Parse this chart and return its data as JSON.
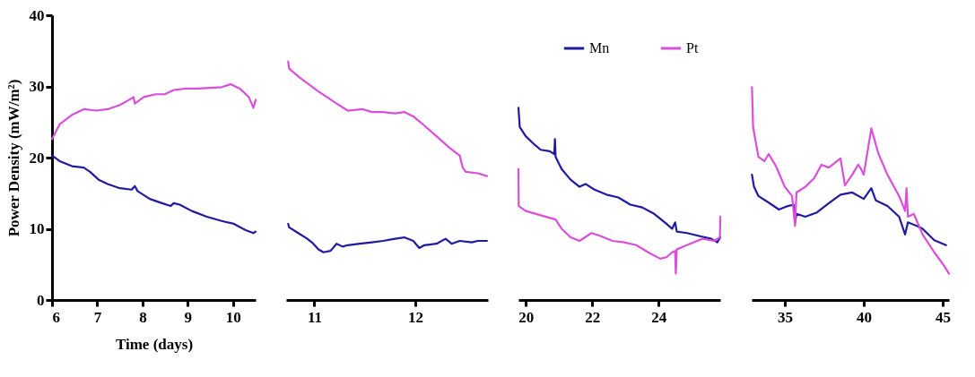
{
  "chart_data": [
    {
      "type": "line",
      "xlabel": "Time (days)",
      "ylabel": "Power Density (mW/m²)",
      "xlim": [
        6,
        10.5
      ],
      "xticks": [
        6,
        7,
        8,
        9,
        10
      ],
      "ylim": [
        0,
        40
      ],
      "yticks": [
        0,
        10,
        20,
        30,
        40
      ],
      "grid": false,
      "legend": false,
      "line_style": "solid",
      "marker": "none",
      "series": [
        {
          "color": "#1f1aa0",
          "x": [
            6.0,
            6.17,
            6.44,
            6.7,
            6.84,
            7.03,
            7.23,
            7.5,
            7.76,
            7.83,
            7.89,
            8.16,
            8.43,
            8.62,
            8.69,
            8.82,
            9.09,
            9.42,
            9.75,
            10.02,
            10.28,
            10.45,
            10.5
          ],
          "values": [
            20.3,
            19.5,
            18.8,
            18.6,
            18.0,
            16.9,
            16.3,
            15.7,
            15.5,
            16.0,
            15.3,
            14.2,
            13.6,
            13.2,
            13.6,
            13.4,
            12.5,
            11.7,
            11.1,
            10.7,
            9.8,
            9.4,
            9.6
          ]
        },
        {
          "color": "#d94fd9",
          "x": [
            6.0,
            6.17,
            6.44,
            6.7,
            6.97,
            7.23,
            7.5,
            7.7,
            7.8,
            7.83,
            8.03,
            8.29,
            8.49,
            8.69,
            8.96,
            9.22,
            9.49,
            9.75,
            9.95,
            10.15,
            10.35,
            10.45,
            10.5
          ],
          "values": [
            22.6,
            24.7,
            26.0,
            26.8,
            26.6,
            26.8,
            27.4,
            28.1,
            28.5,
            27.6,
            28.5,
            28.9,
            28.9,
            29.5,
            29.7,
            29.7,
            29.8,
            29.9,
            30.3,
            29.7,
            28.5,
            27.0,
            28.1
          ]
        }
      ]
    },
    {
      "type": "line",
      "xlim": [
        10.72,
        12.72
      ],
      "xticks": [
        11,
        12
      ],
      "ylim": [
        0,
        40
      ],
      "tick_labels": "x",
      "grid": false,
      "legend": false,
      "line_style": "solid",
      "marker": "none",
      "series": [
        {
          "color": "#1f1aa0",
          "x": [
            10.74,
            10.75,
            10.84,
            10.93,
            10.99,
            11.04,
            11.09,
            11.16,
            11.22,
            11.28,
            11.33,
            11.45,
            11.57,
            11.68,
            11.8,
            11.89,
            11.98,
            12.04,
            12.09,
            12.21,
            12.3,
            12.36,
            12.44,
            12.56,
            12.62,
            12.71
          ],
          "values": [
            10.7,
            10.2,
            9.4,
            8.6,
            7.9,
            7.1,
            6.7,
            6.9,
            7.9,
            7.5,
            7.7,
            7.9,
            8.1,
            8.3,
            8.6,
            8.8,
            8.3,
            7.3,
            7.7,
            7.9,
            8.6,
            7.9,
            8.3,
            8.1,
            8.3,
            8.3
          ]
        },
        {
          "color": "#d94fd9",
          "x": [
            10.74,
            10.75,
            10.84,
            11.04,
            11.22,
            11.33,
            11.48,
            11.57,
            11.68,
            11.8,
            11.89,
            11.98,
            12.09,
            12.21,
            12.33,
            12.42,
            12.44,
            12.47,
            12.5,
            12.62,
            12.71
          ],
          "values": [
            33.5,
            32.5,
            31.4,
            29.3,
            27.6,
            26.6,
            26.8,
            26.4,
            26.4,
            26.2,
            26.4,
            25.8,
            24.5,
            23.0,
            21.5,
            20.5,
            20.3,
            18.6,
            18.0,
            17.8,
            17.4
          ]
        }
      ]
    },
    {
      "type": "line",
      "xlim": [
        19.78,
        25.86
      ],
      "xticks": [
        20,
        22,
        24
      ],
      "ylim": [
        0,
        40
      ],
      "tick_labels": "x",
      "grid": false,
      "legend": "top right",
      "line_style": "solid",
      "marker": "none",
      "series": [
        {
          "name": "Mn",
          "color": "#1f1aa0",
          "x": [
            19.78,
            19.82,
            20.0,
            20.27,
            20.45,
            20.72,
            20.86,
            20.88,
            20.9,
            21.08,
            21.35,
            21.62,
            21.8,
            22.07,
            22.43,
            22.79,
            23.15,
            23.51,
            23.87,
            24.24,
            24.41,
            24.5,
            24.55,
            24.86,
            25.22,
            25.59,
            25.77,
            25.86
          ],
          "values": [
            27.0,
            24.3,
            23.0,
            21.8,
            21.1,
            20.9,
            20.5,
            22.6,
            20.1,
            18.4,
            16.9,
            15.9,
            16.3,
            15.5,
            14.8,
            14.4,
            13.4,
            13.0,
            12.1,
            10.7,
            10.0,
            10.9,
            9.6,
            9.4,
            9.0,
            8.6,
            8.1,
            8.8
          ]
        },
        {
          "name": "Pt",
          "color": "#d94fd9",
          "x": [
            19.78,
            19.79,
            20.0,
            20.45,
            20.9,
            21.08,
            21.35,
            21.62,
            21.98,
            22.25,
            22.61,
            22.97,
            23.33,
            23.69,
            24.05,
            24.24,
            24.41,
            24.5,
            24.52,
            24.55,
            24.95,
            25.32,
            25.68,
            25.85,
            25.86
          ],
          "values": [
            18.4,
            13.2,
            12.5,
            11.9,
            11.3,
            10.0,
            8.8,
            8.3,
            9.4,
            9.0,
            8.3,
            8.1,
            7.7,
            6.7,
            5.8,
            6.0,
            6.7,
            6.9,
            3.7,
            7.1,
            7.9,
            8.6,
            8.3,
            8.8,
            11.7
          ]
        }
      ]
    },
    {
      "type": "line",
      "xlim": [
        32.9,
        45.4
      ],
      "xticks": [
        35,
        40,
        45
      ],
      "ylim": [
        0,
        40
      ],
      "tick_labels": "x",
      "grid": false,
      "legend": false,
      "line_style": "solid",
      "marker": "none",
      "series": [
        {
          "color": "#1f1aa0",
          "x": [
            32.92,
            33.05,
            33.33,
            33.89,
            34.63,
            35.19,
            35.56,
            35.65,
            35.74,
            36.3,
            37.04,
            37.79,
            38.53,
            39.27,
            40.0,
            40.48,
            40.76,
            41.5,
            42.24,
            42.62,
            42.8,
            43.36,
            43.73,
            44.47,
            45.21
          ],
          "values": [
            17.6,
            15.9,
            14.6,
            13.8,
            12.7,
            13.2,
            13.4,
            10.9,
            12.1,
            11.7,
            12.3,
            13.6,
            14.8,
            15.1,
            14.2,
            15.7,
            14.0,
            13.2,
            11.7,
            9.2,
            10.9,
            10.4,
            10.0,
            8.4,
            7.7
          ]
        },
        {
          "color": "#d94fd9",
          "x": [
            32.92,
            32.99,
            33.33,
            33.7,
            33.98,
            34.44,
            35.0,
            35.46,
            35.65,
            35.74,
            36.3,
            36.86,
            37.32,
            37.79,
            38.53,
            38.81,
            39.27,
            39.64,
            39.83,
            40.0,
            40.48,
            40.67,
            40.94,
            41.5,
            42.24,
            42.62,
            42.71,
            42.8,
            43.17,
            43.73,
            44.47,
            45.03,
            45.4
          ],
          "values": [
            29.9,
            24.3,
            20.1,
            19.5,
            20.5,
            18.8,
            15.9,
            14.6,
            10.4,
            15.1,
            15.9,
            17.1,
            19.0,
            18.6,
            19.9,
            16.1,
            17.6,
            19.0,
            18.4,
            17.6,
            24.1,
            22.6,
            20.5,
            17.6,
            14.6,
            12.5,
            15.7,
            11.7,
            12.1,
            9.2,
            6.7,
            5.0,
            3.7
          ]
        }
      ]
    }
  ]
}
